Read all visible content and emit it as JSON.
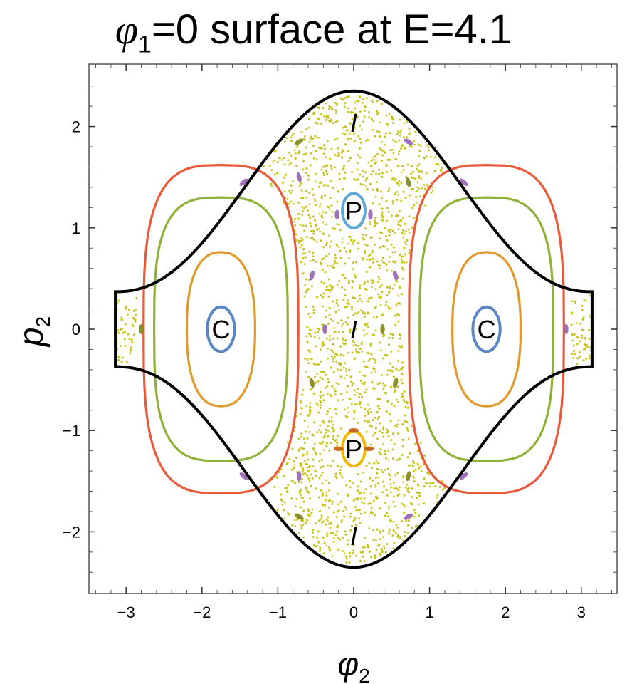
{
  "chart_data": {
    "type": "scatter",
    "title": {
      "symbol": "φ",
      "sub": "1",
      "rest": "=0 surface at E=4.1"
    },
    "xlabel": {
      "symbol": "φ",
      "sub": "2"
    },
    "ylabel": {
      "symbol": "p",
      "sub": "2"
    },
    "xlim": [
      -3.5,
      3.5
    ],
    "ylim": [
      -2.6,
      2.6
    ],
    "xticks": [
      -3,
      -2,
      -1,
      0,
      1,
      2,
      3
    ],
    "yticks": [
      -2,
      -1,
      0,
      1,
      2
    ],
    "tick_labels": {
      "x": [
        "−3",
        "−2",
        "−1",
        "0",
        "1",
        "2",
        "3"
      ],
      "y": [
        "−2",
        "−1",
        "0",
        "1",
        "2"
      ]
    },
    "grid": false,
    "boundary": {
      "name": "energy boundary",
      "color": "#000000",
      "p_max": 2.35,
      "p_edge": 0.37,
      "phi_edge": 3.14159
    },
    "chaotic_sea": {
      "color": "#c8c41a",
      "region": "outside the regular islands, inside the energy boundary"
    },
    "regular_orbits": [
      {
        "family": "C",
        "color": "#5b86c4",
        "center": [
          -1.75,
          0
        ],
        "rx": 0.18,
        "ry": 0.22
      },
      {
        "family": "C",
        "color": "#5b86c4",
        "center": [
          1.75,
          0
        ],
        "rx": 0.18,
        "ry": 0.22
      },
      {
        "family": "C",
        "color": "#e0992b",
        "center": [
          -1.75,
          0
        ],
        "rx": 0.45,
        "ry": 0.76
      },
      {
        "family": "C",
        "color": "#e0992b",
        "center": [
          1.75,
          0
        ],
        "rx": 0.45,
        "ry": 0.76
      },
      {
        "family": "C",
        "color": "#8fb13a",
        "center": [
          -1.75,
          0
        ],
        "rx": 0.88,
        "ry": 1.3
      },
      {
        "family": "C",
        "color": "#8fb13a",
        "center": [
          1.75,
          0
        ],
        "rx": 0.88,
        "ry": 1.3
      },
      {
        "family": "C",
        "color": "#e85a3a",
        "center": [
          -1.75,
          0
        ],
        "rx": 1.02,
        "ry": 1.62
      },
      {
        "family": "C",
        "color": "#e85a3a",
        "center": [
          1.75,
          0
        ],
        "rx": 1.02,
        "ry": 1.62
      },
      {
        "family": "P",
        "color": "#62a8d4",
        "center": [
          0,
          1.17
        ],
        "rx": 0.15,
        "ry": 0.17
      },
      {
        "family": "P",
        "color": "#f2b705",
        "center": [
          0,
          -1.18
        ],
        "rx": 0.15,
        "ry": 0.17
      }
    ],
    "small_islands": [
      {
        "color": "#a070b8",
        "x": -1.45,
        "y": 1.45,
        "rot": -40
      },
      {
        "color": "#a070b8",
        "x": 1.45,
        "y": 1.45,
        "rot": 40
      },
      {
        "color": "#a070b8",
        "x": -1.45,
        "y": -1.45,
        "rot": 40
      },
      {
        "color": "#a070b8",
        "x": 1.45,
        "y": -1.45,
        "rot": -40
      },
      {
        "color": "#a070b8",
        "x": -0.72,
        "y": 1.5,
        "rot": 75
      },
      {
        "color": "#a070b8",
        "x": 0.72,
        "y": 1.85,
        "rot": 30
      },
      {
        "color": "#a070b8",
        "x": -0.72,
        "y": -1.45,
        "rot": 90
      },
      {
        "color": "#a070b8",
        "x": 0.72,
        "y": -1.85,
        "rot": -30
      },
      {
        "color": "#a070b8",
        "x": -0.38,
        "y": 0.0,
        "rot": 90
      },
      {
        "color": "#a070b8",
        "x": 2.8,
        "y": 0.0,
        "rot": 90
      },
      {
        "color": "#a070b8",
        "x": 0.55,
        "y": 0.53,
        "rot": 75
      },
      {
        "color": "#a070b8",
        "x": -0.55,
        "y": 0.53,
        "rot": -75
      },
      {
        "color": "#8a8f2a",
        "x": -0.72,
        "y": 1.85,
        "rot": -30
      },
      {
        "color": "#8a8f2a",
        "x": 0.72,
        "y": 1.45,
        "rot": 75
      },
      {
        "color": "#8a8f2a",
        "x": -0.72,
        "y": -1.85,
        "rot": 30
      },
      {
        "color": "#8a8f2a",
        "x": 0.72,
        "y": -1.45,
        "rot": -75
      },
      {
        "color": "#8a8f2a",
        "x": 0.38,
        "y": 0.0,
        "rot": 90
      },
      {
        "color": "#8a8f2a",
        "x": -2.8,
        "y": 0.0,
        "rot": 90
      },
      {
        "color": "#8a8f2a",
        "x": 0.55,
        "y": -0.53,
        "rot": -75
      },
      {
        "color": "#8a8f2a",
        "x": -0.55,
        "y": -0.53,
        "rot": 75
      },
      {
        "color": "#a070b8",
        "x": -0.22,
        "y": 1.13,
        "rot": 90
      },
      {
        "color": "#a070b8",
        "x": 0.22,
        "y": 1.13,
        "rot": 90
      },
      {
        "color": "#c66a1e",
        "x": -0.2,
        "y": -1.18,
        "rot": 0
      },
      {
        "color": "#c66a1e",
        "x": 0.2,
        "y": -1.18,
        "rot": 0
      },
      {
        "color": "#c66a1e",
        "x": 0.0,
        "y": -1.0,
        "rot": 0
      }
    ],
    "annotations": [
      {
        "text": "C",
        "x": -1.75,
        "y": 0.0
      },
      {
        "text": "C",
        "x": 1.75,
        "y": 0.0
      },
      {
        "text": "P",
        "x": 0.0,
        "y": 1.17
      },
      {
        "text": "P",
        "x": 0.0,
        "y": -1.18
      },
      {
        "text": "I",
        "x": 0.0,
        "y": 2.04,
        "italic": true
      },
      {
        "text": "I",
        "x": 0.0,
        "y": 0.0,
        "italic": true
      },
      {
        "text": "I",
        "x": 0.0,
        "y": -2.04,
        "italic": true
      }
    ]
  }
}
